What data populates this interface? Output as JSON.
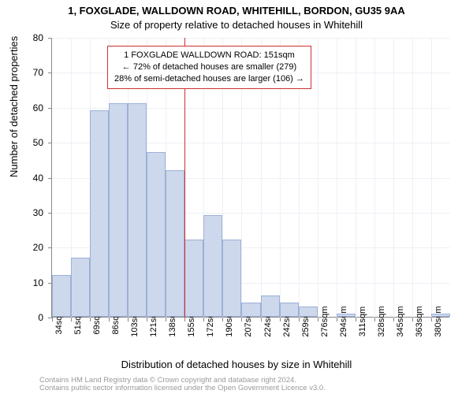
{
  "title_line1": "1, FOXGLADE, WALLDOWN ROAD, WHITEHILL, BORDON, GU35 9AA",
  "title_line2": "Size of property relative to detached houses in Whitehill",
  "ylabel": "Number of detached properties",
  "xlabel": "Distribution of detached houses by size in Whitehill",
  "attribution_line1": "Contains HM Land Registry data © Crown copyright and database right 2024.",
  "attribution_line2": "Contains public sector information licensed under the Open Government Licence v3.0.",
  "chart": {
    "type": "histogram",
    "ylim": [
      0,
      80
    ],
    "ytick_step": 10,
    "xticks": [
      "34sqm",
      "51sqm",
      "69sqm",
      "86sqm",
      "103sqm",
      "121sqm",
      "138sqm",
      "155sqm",
      "172sqm",
      "190sqm",
      "207sqm",
      "224sqm",
      "242sqm",
      "259sqm",
      "276sqm",
      "294sqm",
      "311sqm",
      "328sqm",
      "345sqm",
      "363sqm",
      "380sqm"
    ],
    "values": [
      12,
      17,
      59,
      61,
      61,
      47,
      42,
      22,
      29,
      22,
      4,
      6,
      4,
      3,
      0,
      1,
      0,
      0,
      0,
      0,
      1
    ],
    "bar_color": "#cdd8ec",
    "bar_border_color": "#9db0d6",
    "background_color": "#ffffff",
    "grid_color": "#eef0f6",
    "axis_color": "#888888",
    "marker_color": "#d03030",
    "marker_index": 7,
    "label_fontsize": 13,
    "tick_fontsize": 11
  },
  "info_box": {
    "line1": "1 FOXGLADE WALLDOWN ROAD: 151sqm",
    "line2": "← 72% of detached houses are smaller (279)",
    "line3": "28% of semi-detached houses are larger (106) →"
  }
}
